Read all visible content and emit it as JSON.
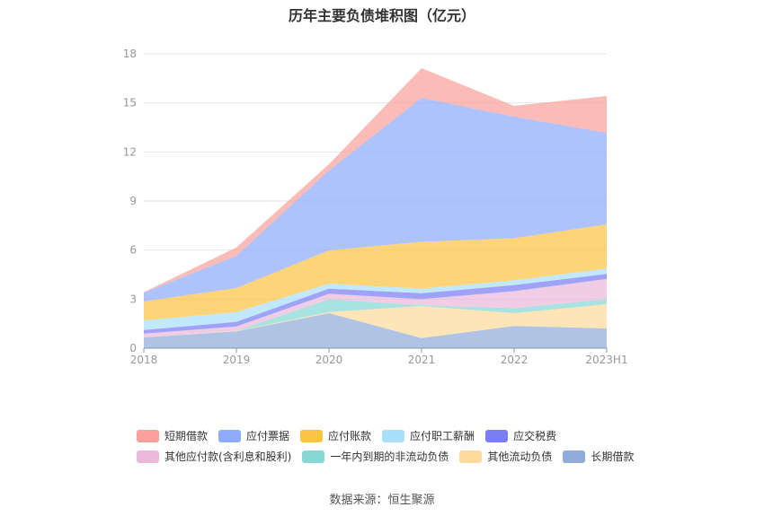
{
  "chart_data": {
    "type": "area",
    "stacked": true,
    "title": "历年主要负债堆积图（亿元）",
    "categories": [
      "2018",
      "2019",
      "2020",
      "2021",
      "2022",
      "2023H1"
    ],
    "ylim": [
      0,
      18
    ],
    "yticks": [
      0,
      3,
      6,
      9,
      12,
      15,
      18
    ],
    "grid": true,
    "legend_position": "bottom",
    "series": [
      {
        "name": "长期借款",
        "color": "#90acdb",
        "values": [
          0.66,
          1.03,
          2.14,
          0.62,
          1.36,
          1.21
        ]
      },
      {
        "name": "其他流动负债",
        "color": "#fedb9c",
        "values": [
          0.0,
          0.02,
          0.07,
          1.96,
          0.78,
          1.48
        ]
      },
      {
        "name": "一年内到期的非流动负债",
        "color": "#86d8d6",
        "values": [
          0.0,
          0.01,
          0.79,
          0.05,
          0.31,
          0.31
        ]
      },
      {
        "name": "其他应付款(含利息和股利)",
        "color": "#ebbadb",
        "values": [
          0.23,
          0.27,
          0.33,
          0.37,
          1.04,
          1.23
        ]
      },
      {
        "name": "应交税费",
        "color": "#7a7ef4",
        "values": [
          0.22,
          0.28,
          0.31,
          0.36,
          0.37,
          0.31
        ]
      },
      {
        "name": "应付职工薪酬",
        "color": "#a9dffb",
        "values": [
          0.59,
          0.6,
          0.31,
          0.28,
          0.29,
          0.34
        ]
      },
      {
        "name": "应付账款",
        "color": "#fcc443",
        "values": [
          1.17,
          1.47,
          2.03,
          2.87,
          2.58,
          2.69
        ]
      },
      {
        "name": "应付票据",
        "color": "#8fabfb",
        "values": [
          0.53,
          1.97,
          4.89,
          8.8,
          7.43,
          5.6
        ]
      },
      {
        "name": "短期借款",
        "color": "#f9a19a",
        "values": [
          0.02,
          0.51,
          0.38,
          1.81,
          0.66,
          2.25
        ]
      }
    ],
    "legend_order": [
      8,
      7,
      6,
      5,
      4,
      3,
      2,
      1,
      0
    ]
  },
  "source": "数据来源：恒生聚源"
}
